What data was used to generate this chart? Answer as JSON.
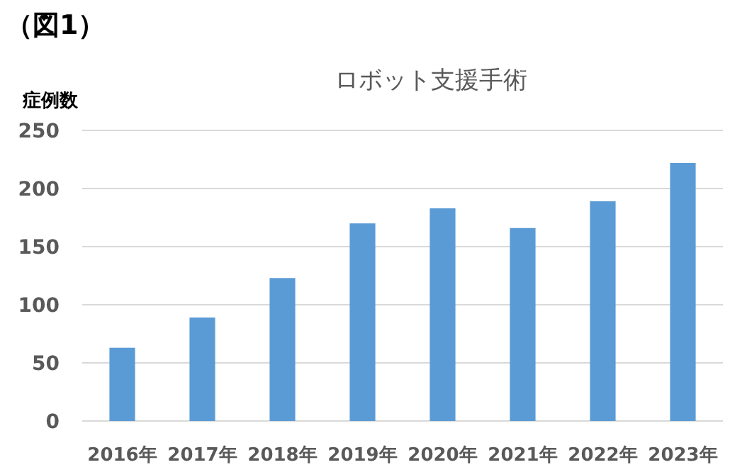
{
  "chart_data": {
    "type": "bar",
    "title": "ロボット支援手術",
    "ylabel": "症例数",
    "annotations": [
      "（図1）"
    ],
    "categories": [
      "2016年",
      "2017年",
      "2018年",
      "2019年",
      "2020年",
      "2021年",
      "2022年",
      "2023年"
    ],
    "values": [
      63,
      89,
      123,
      170,
      183,
      166,
      189,
      222
    ],
    "color": "#5b9bd5",
    "ylim": [
      0,
      250
    ],
    "yticks": [
      0,
      50,
      100,
      150,
      200,
      250
    ],
    "grid": "y"
  }
}
